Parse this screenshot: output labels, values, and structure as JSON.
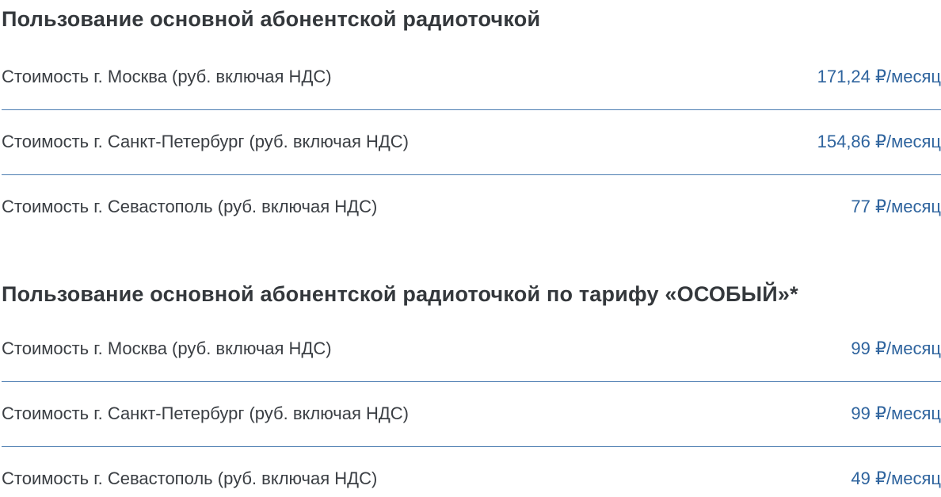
{
  "page": {
    "background": "#ffffff",
    "heading_color": "#34383c",
    "label_color": "#3a3e43",
    "price_color": "#2f649e",
    "divider_color": "#4b7cb1"
  },
  "sections": [
    {
      "title": "Пользование основной абонентской радиоточкой",
      "rows": [
        {
          "label": "Стоимость г. Москва (руб. включая НДС)",
          "value": "171,24 ₽/месяц"
        },
        {
          "label": "Стоимость г. Санкт-Петербург (руб. включая НДС)",
          "value": "154,86 ₽/месяц"
        },
        {
          "label": "Стоимость г. Севастополь (руб. включая НДС)",
          "value": "77 ₽/месяц"
        }
      ]
    },
    {
      "title": "Пользование основной абонентской радиоточкой по тарифу «ОСОБЫЙ»*",
      "rows": [
        {
          "label": "Стоимость г. Москва (руб. включая НДС)",
          "value": "99 ₽/месяц"
        },
        {
          "label": "Стоимость г. Санкт-Петербург (руб. включая НДС)",
          "value": "99 ₽/месяц"
        },
        {
          "label": "Стоимость г. Севастополь (руб. включая НДС)",
          "value": "49 ₽/месяц"
        }
      ]
    }
  ]
}
